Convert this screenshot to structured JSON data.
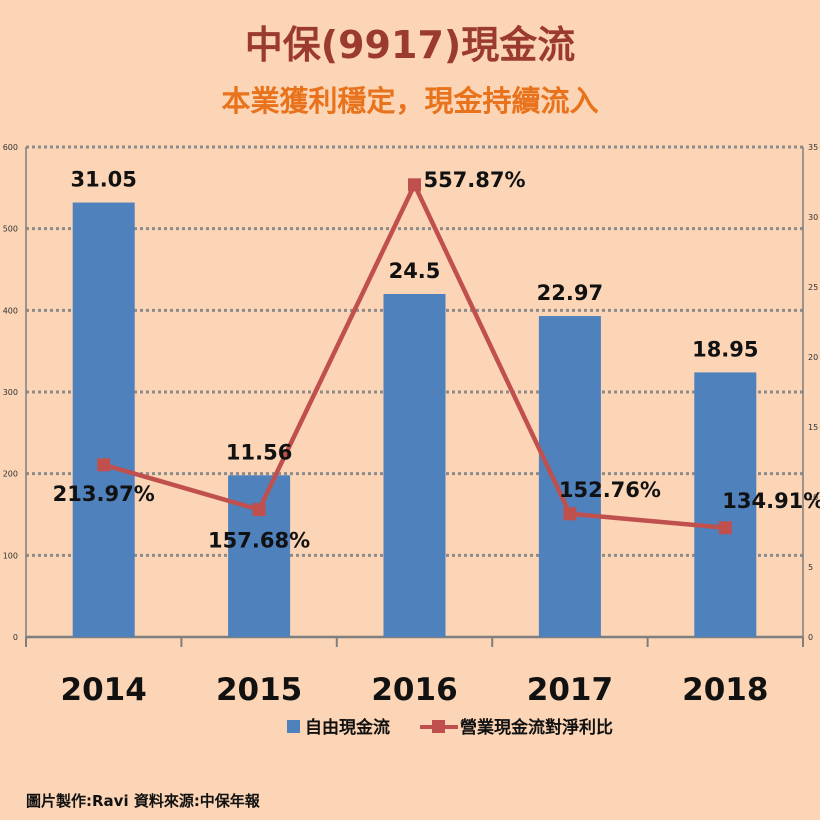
{
  "header": {
    "title": "中保(9917)現金流",
    "subtitle": "本業獲利穩定，現金持續流入"
  },
  "footer": {
    "credit": "圖片製作:Ravi  資料來源:中保年報"
  },
  "colors": {
    "bar": "#4f81bd",
    "line": "#c0504d",
    "grid": "#8c8c8c",
    "background": "#fbd5b5"
  },
  "chart_data": {
    "type": "bar",
    "categories": [
      "2014",
      "2015",
      "2016",
      "2017",
      "2018"
    ],
    "series": [
      {
        "name": "自由現金流",
        "type": "bar",
        "axis": "left",
        "values": [
          532,
          198,
          420,
          393,
          324
        ],
        "labels": [
          "31.05",
          "11.56",
          "24.5",
          "22.97",
          "18.95"
        ]
      },
      {
        "name": "營業現金流對淨利比",
        "type": "line",
        "axis": "right",
        "values": [
          12.3,
          9.1,
          32.3,
          8.8,
          7.8
        ],
        "labels": [
          "213.97%",
          "157.68%",
          "557.87%",
          "152.76%",
          "134.91%"
        ]
      }
    ],
    "y_left": {
      "min": 0,
      "max": 600,
      "ticks": [
        "0",
        "100",
        "200",
        "300",
        "400",
        "500",
        "600"
      ]
    },
    "y_right": {
      "min": 0,
      "max": 35,
      "ticks": [
        "0",
        "5",
        "10",
        "15",
        "20",
        "25",
        "30",
        "35"
      ]
    },
    "grid": true,
    "legend_position": "bottom"
  }
}
